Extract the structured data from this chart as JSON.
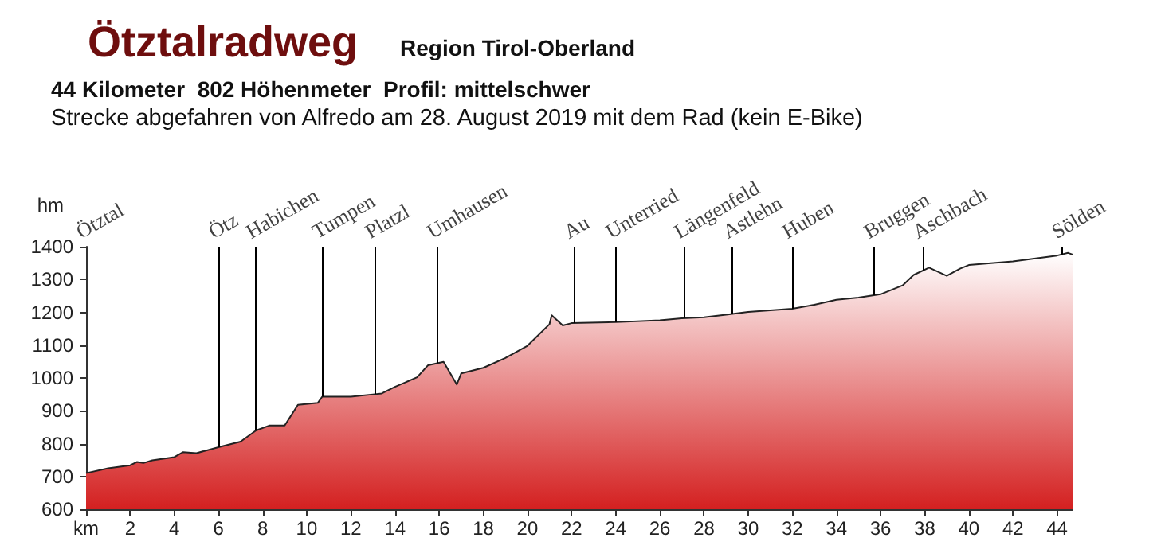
{
  "chart_data": {
    "type": "area",
    "title": "Ötztalradweg",
    "subtitle": "Region Tirol-Oberland",
    "annotations": [
      "44 Kilometer  802 Höhenmeter  Profil: mittelschwer",
      "Strecke abgefahren von Alfredo am 28. August 2019 mit dem Rad (kein E-Bike)",
      "Ötztal"
    ],
    "ylabel": "hm",
    "x": [
      0,
      1,
      2,
      2.3,
      2.6,
      3,
      4,
      4.4,
      5,
      6,
      7,
      7.7,
      8.3,
      9,
      9.6,
      10.5,
      10.7,
      12,
      13,
      13.4,
      14,
      15,
      15.5,
      16.2,
      16.8,
      17,
      18,
      19,
      20,
      21,
      21.1,
      21.6,
      22,
      24,
      26,
      27,
      28,
      29,
      30,
      32,
      33,
      34,
      35,
      36,
      37,
      37.5,
      38.2,
      39,
      39.6,
      40,
      42,
      44,
      44.5,
      44.7
    ],
    "series": [
      {
        "color": "#d42020",
        "values": [
          710,
          725,
          734,
          744,
          741,
          749,
          759,
          774,
          771,
          789,
          806,
          840,
          855,
          855,
          918,
          924,
          943,
          943,
          950,
          953,
          973,
          1002,
          1039,
          1049,
          980,
          1014,
          1031,
          1061,
          1098,
          1164,
          1191,
          1160,
          1167,
          1170,
          1176,
          1182,
          1185,
          1193,
          1201,
          1211,
          1223,
          1238,
          1245,
          1255,
          1282,
          1314,
          1336,
          1311,
          1333,
          1344,
          1355,
          1373,
          1381,
          1376
        ]
      }
    ],
    "xlim": [
      0,
      44.7
    ],
    "ylim": [
      600,
      1400
    ],
    "xticks": [
      {
        "value": 0,
        "label": "km"
      },
      2,
      4,
      6,
      8,
      10,
      12,
      14,
      16,
      18,
      20,
      22,
      24,
      26,
      28,
      30,
      32,
      34,
      36,
      38,
      40,
      42,
      44
    ],
    "yticks": [
      600,
      700,
      800,
      900,
      1000,
      1100,
      1200,
      1300,
      1400
    ],
    "grid": false,
    "marker": "none",
    "line_style": "solid",
    "ref_lines": [
      {
        "axis": "x",
        "value": 6.0,
        "label": "Ötz"
      },
      {
        "axis": "x",
        "value": 7.7,
        "label": "Habichen"
      },
      {
        "axis": "x",
        "value": 10.7,
        "label": "Tumpen"
      },
      {
        "axis": "x",
        "value": 13.1,
        "label": "Platzl"
      },
      {
        "axis": "x",
        "value": 15.9,
        "label": "Umhausen"
      },
      {
        "axis": "x",
        "value": 22.1,
        "label": "Au"
      },
      {
        "axis": "x",
        "value": 24.0,
        "label": "Unterried"
      },
      {
        "axis": "x",
        "value": 27.1,
        "label": "Längenfeld"
      },
      {
        "axis": "x",
        "value": 29.3,
        "label": "Astlehn"
      },
      {
        "axis": "x",
        "value": 32.0,
        "label": "Huben"
      },
      {
        "axis": "x",
        "value": 35.7,
        "label": "Bruggen"
      },
      {
        "axis": "x",
        "value": 37.9,
        "label": "Aschbach"
      },
      {
        "axis": "x",
        "value": 44.2,
        "label": "Sölden"
      }
    ]
  }
}
